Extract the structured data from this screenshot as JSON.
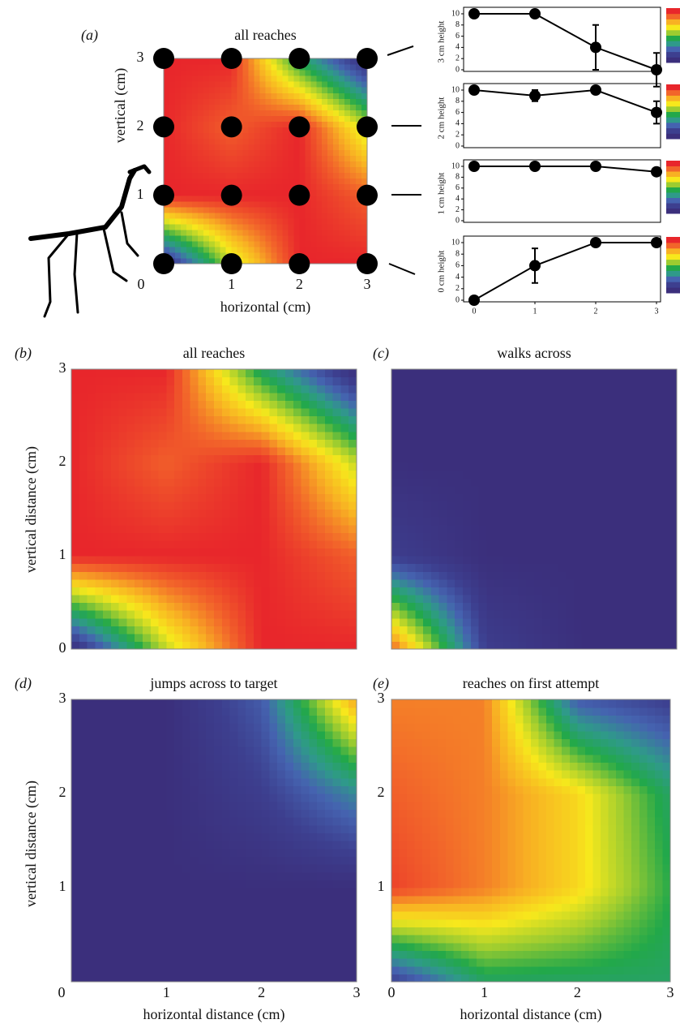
{
  "chart_data": [
    {
      "type": "heatmap",
      "panel_label": "(a)",
      "title": "all reaches",
      "xlabel": "horizontal (cm)",
      "ylabel": "vertical  (cm)",
      "x": [
        0,
        1,
        2,
        3
      ],
      "y": [
        0,
        1,
        2,
        3
      ],
      "z": [
        [
          0,
          6,
          10,
          10
        ],
        [
          10,
          10,
          10,
          9
        ],
        [
          10,
          9,
          10,
          6
        ],
        [
          10,
          10,
          4,
          0
        ]
      ],
      "xlim": [
        0,
        3
      ],
      "ylim": [
        0,
        3
      ],
      "xticks": [
        0,
        1,
        2,
        3
      ],
      "yticks": [
        1,
        2,
        3
      ],
      "zlim": [
        0,
        10
      ],
      "colorscale": [
        "#3b2f7c",
        "#3d3f8f",
        "#4563b0",
        "#2f9a8a",
        "#22a84a",
        "#9ccc30",
        "#f7e81c",
        "#f8b123",
        "#f2652a",
        "#e8262b"
      ],
      "markers": true
    },
    {
      "type": "line",
      "ylabel": "3 cm height",
      "x": [
        0,
        1,
        2,
        3
      ],
      "values": [
        10,
        10,
        4,
        0
      ],
      "errors": [
        0,
        0,
        4,
        3
      ],
      "xlim": [
        0,
        3
      ],
      "ylim": [
        0,
        10
      ],
      "yticks": [
        0,
        2,
        4,
        6,
        8,
        10
      ],
      "xticks": [],
      "color": "#000000"
    },
    {
      "type": "line",
      "ylabel": "2 cm height",
      "x": [
        0,
        1,
        2,
        3
      ],
      "values": [
        10,
        9,
        10,
        6
      ],
      "errors": [
        0,
        1,
        0,
        2
      ],
      "xlim": [
        0,
        3
      ],
      "ylim": [
        0,
        10
      ],
      "yticks": [
        0,
        2,
        4,
        6,
        8,
        10
      ],
      "xticks": [],
      "color": "#000000"
    },
    {
      "type": "line",
      "ylabel": "1 cm height",
      "x": [
        0,
        1,
        2,
        3
      ],
      "values": [
        10,
        10,
        10,
        9
      ],
      "errors": [
        0,
        0,
        0.5,
        0.5
      ],
      "xlim": [
        0,
        3
      ],
      "ylim": [
        0,
        10
      ],
      "yticks": [
        0,
        2,
        4,
        6,
        8,
        10
      ],
      "xticks": [],
      "color": "#000000"
    },
    {
      "type": "line",
      "ylabel": "0 cm height",
      "x": [
        0,
        1,
        2,
        3
      ],
      "values": [
        0,
        6,
        10,
        10
      ],
      "errors": [
        0,
        3,
        0,
        0
      ],
      "xlim": [
        0,
        3
      ],
      "ylim": [
        0,
        10
      ],
      "yticks": [
        0,
        2,
        4,
        6,
        8,
        10
      ],
      "xticks": [
        0,
        1,
        2,
        3
      ],
      "color": "#000000"
    },
    {
      "type": "heatmap",
      "panel_label": "(b)",
      "title": "all reaches",
      "ylabel": "vertical distance (cm)",
      "x": [
        0,
        1,
        2,
        3
      ],
      "y": [
        0,
        1,
        2,
        3
      ],
      "z": [
        [
          0,
          6,
          10,
          10
        ],
        [
          10,
          10,
          10,
          9
        ],
        [
          10,
          9,
          10,
          6
        ],
        [
          10,
          10,
          4,
          0
        ]
      ],
      "xlim": [
        0,
        3
      ],
      "ylim": [
        0,
        3
      ],
      "xticks": [],
      "yticks": [
        0,
        1,
        2,
        3
      ],
      "zlim": [
        0,
        10
      ],
      "colorscale": [
        "#3b2f7c",
        "#3d3f8f",
        "#4563b0",
        "#2f9a8a",
        "#22a84a",
        "#9ccc30",
        "#f7e81c",
        "#f8b123",
        "#f2652a",
        "#e8262b"
      ]
    },
    {
      "type": "heatmap",
      "panel_label": "(c)",
      "title": "walks across",
      "x": [
        0,
        1,
        2,
        3
      ],
      "y": [
        0,
        1,
        2,
        3
      ],
      "z": [
        [
          9,
          1,
          0,
          0
        ],
        [
          1,
          0,
          0,
          0
        ],
        [
          0,
          0,
          0,
          0
        ],
        [
          0,
          0,
          0,
          0
        ]
      ],
      "xlim": [
        0,
        3
      ],
      "ylim": [
        0,
        3
      ],
      "xticks": [],
      "yticks": [],
      "zlim": [
        0,
        10
      ],
      "colorscale": [
        "#3b2f7c",
        "#3d3f8f",
        "#4563b0",
        "#2f9a8a",
        "#22a84a",
        "#9ccc30",
        "#f7e81c",
        "#f8b123",
        "#f2652a",
        "#e8262b"
      ]
    },
    {
      "type": "heatmap",
      "panel_label": "(d)",
      "title": "jumps across to target",
      "xlabel": "horizontal distance (cm)",
      "ylabel": "vertical distance (cm)",
      "x": [
        0,
        1,
        2,
        3
      ],
      "y": [
        0,
        1,
        2,
        3
      ],
      "z": [
        [
          0,
          0,
          0,
          0
        ],
        [
          0,
          0,
          0,
          0
        ],
        [
          0,
          0,
          1,
          3
        ],
        [
          0,
          0,
          2,
          8
        ]
      ],
      "xlim": [
        0,
        3
      ],
      "ylim": [
        0,
        3
      ],
      "xticks": [
        0,
        1,
        2,
        3
      ],
      "yticks": [
        1,
        2,
        3
      ],
      "zlim": [
        0,
        10
      ],
      "colorscale": [
        "#3b2f7c",
        "#3d3f8f",
        "#4563b0",
        "#2f9a8a",
        "#22a84a",
        "#9ccc30",
        "#f7e81c",
        "#f8b123",
        "#f2652a",
        "#e8262b"
      ]
    },
    {
      "type": "heatmap",
      "panel_label": "(e)",
      "title": "reaches on first attempt",
      "xlabel": "horizontal distance (cm)",
      "x": [
        0,
        1,
        2,
        3
      ],
      "y": [
        0,
        1,
        2,
        3
      ],
      "z": [
        [
          1,
          4,
          4,
          4
        ],
        [
          9.5,
          8.5,
          7,
          4.5
        ],
        [
          9,
          8.5,
          7,
          4
        ],
        [
          8.5,
          8.5,
          2,
          1
        ]
      ],
      "xlim": [
        0,
        3
      ],
      "ylim": [
        0,
        3
      ],
      "xticks": [
        0,
        1,
        2,
        3
      ],
      "yticks": [
        1,
        2,
        3
      ],
      "zlim": [
        0,
        10
      ],
      "colorscale": [
        "#3b2f7c",
        "#3d3f8f",
        "#4563b0",
        "#2f9a8a",
        "#22a84a",
        "#9ccc30",
        "#f7e81c",
        "#f8b123",
        "#f2652a",
        "#e8262b"
      ]
    }
  ]
}
